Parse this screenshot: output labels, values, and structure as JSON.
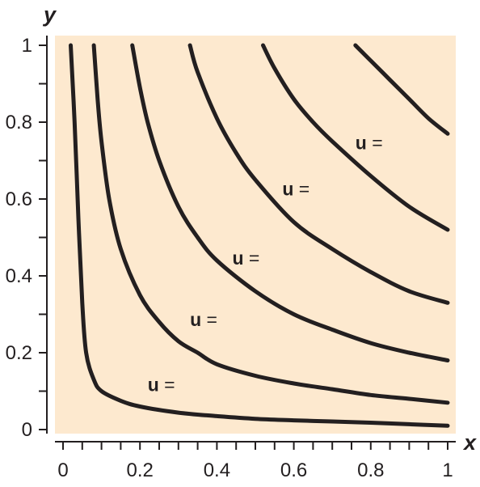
{
  "chart_data": {
    "type": "line",
    "title": "",
    "xlabel": "x",
    "ylabel": "y",
    "xlim": [
      0,
      1
    ],
    "ylim": [
      0,
      1
    ],
    "grid": false,
    "x_ticks": [
      "0",
      "0.2",
      "0.4",
      "0.6",
      "0.8",
      "1"
    ],
    "y_ticks": [
      "0",
      "0.2",
      "0.4",
      "0.6",
      "0.8",
      "1"
    ],
    "colors": {
      "plot_bg": "#fde9cf",
      "curve": "#231f20",
      "axis": "#231f20"
    },
    "series": [
      {
        "label": "u =",
        "x": [
          0.02,
          0.03,
          0.04,
          0.05,
          0.06,
          0.08,
          0.1,
          0.15,
          0.2,
          0.3,
          0.4,
          0.5,
          0.6,
          0.7,
          0.8,
          0.9,
          1.0
        ],
        "y": [
          1.0,
          0.8,
          0.55,
          0.33,
          0.2,
          0.13,
          0.1,
          0.075,
          0.06,
          0.044,
          0.035,
          0.028,
          0.024,
          0.021,
          0.018,
          0.014,
          0.01
        ]
      },
      {
        "label": "u =",
        "x": [
          0.08,
          0.09,
          0.1,
          0.12,
          0.15,
          0.2,
          0.25,
          0.3,
          0.35,
          0.4,
          0.5,
          0.6,
          0.7,
          0.8,
          0.9,
          1.0
        ],
        "y": [
          1.0,
          0.86,
          0.75,
          0.6,
          0.47,
          0.35,
          0.28,
          0.23,
          0.2,
          0.17,
          0.14,
          0.12,
          0.105,
          0.09,
          0.08,
          0.07
        ]
      },
      {
        "label": "u =",
        "x": [
          0.18,
          0.2,
          0.22,
          0.25,
          0.3,
          0.35,
          0.4,
          0.5,
          0.6,
          0.7,
          0.8,
          0.9,
          1.0
        ],
        "y": [
          1.0,
          0.89,
          0.8,
          0.7,
          0.58,
          0.5,
          0.44,
          0.36,
          0.3,
          0.26,
          0.225,
          0.2,
          0.18
        ]
      },
      {
        "label": "u =",
        "x": [
          0.33,
          0.35,
          0.4,
          0.45,
          0.5,
          0.6,
          0.7,
          0.8,
          0.9,
          1.0
        ],
        "y": [
          1.0,
          0.93,
          0.81,
          0.72,
          0.65,
          0.54,
          0.47,
          0.41,
          0.36,
          0.33
        ]
      },
      {
        "label": "u =",
        "x": [
          0.52,
          0.55,
          0.6,
          0.65,
          0.7,
          0.8,
          0.9,
          1.0
        ],
        "y": [
          1.0,
          0.94,
          0.86,
          0.8,
          0.75,
          0.66,
          0.58,
          0.52
        ]
      },
      {
        "label": "",
        "x": [
          0.76,
          0.8,
          0.85,
          0.9,
          0.95,
          1.0
        ],
        "y": [
          1.0,
          0.96,
          0.91,
          0.86,
          0.81,
          0.77
        ]
      }
    ]
  }
}
